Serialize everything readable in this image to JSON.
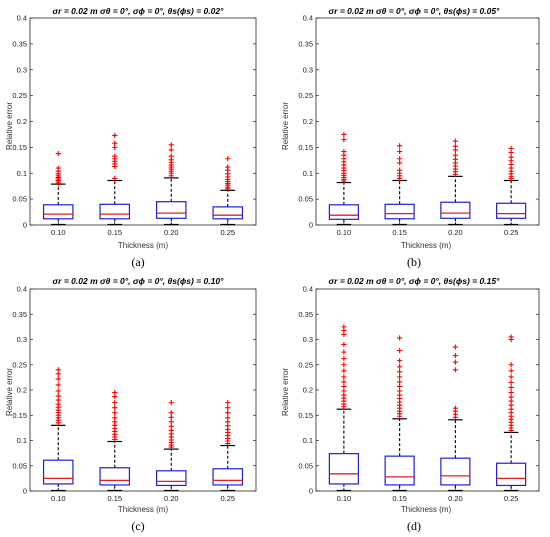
{
  "chart_data": [
    {
      "type": "box",
      "caption": "(a)",
      "title": "σr = 0.02 m σθ = 0°, σϕ = 0°, θs(ϕs) = 0.02°",
      "xlabel": "Thickness (m)",
      "ylabel": "Relative error",
      "categories": [
        "0.10",
        "0.15",
        "0.20",
        "0.25"
      ],
      "ylim": [
        0,
        0.4
      ],
      "yticks": [
        0,
        0.05,
        0.1,
        0.15,
        0.2,
        0.25,
        0.3,
        0.35,
        0.4
      ],
      "ytick_labels": [
        "0",
        "0.05",
        "0.1",
        "0.15",
        "0.2",
        "0.25",
        "0.3",
        "0.35",
        "0.4"
      ],
      "boxes": [
        {
          "q1": 0.012,
          "median": 0.021,
          "q3": 0.039,
          "whisker_low": 0.001,
          "whisker_high": 0.079,
          "outliers": [
            0.08,
            0.083,
            0.086,
            0.089,
            0.092,
            0.095,
            0.099,
            0.104,
            0.11,
            0.138
          ]
        },
        {
          "q1": 0.012,
          "median": 0.021,
          "q3": 0.04,
          "whisker_low": 0.001,
          "whisker_high": 0.086,
          "outliers": [
            0.09,
            0.113,
            0.118,
            0.123,
            0.128,
            0.133,
            0.15,
            0.158,
            0.173
          ]
        },
        {
          "q1": 0.013,
          "median": 0.023,
          "q3": 0.045,
          "whisker_low": 0.001,
          "whisker_high": 0.091,
          "outliers": [
            0.095,
            0.1,
            0.104,
            0.108,
            0.112,
            0.116,
            0.121,
            0.126,
            0.133,
            0.145,
            0.155
          ]
        },
        {
          "q1": 0.012,
          "median": 0.019,
          "q3": 0.035,
          "whisker_low": 0.001,
          "whisker_high": 0.067,
          "outliers": [
            0.07,
            0.073,
            0.077,
            0.08,
            0.084,
            0.088,
            0.093,
            0.099,
            0.106,
            0.112,
            0.128
          ]
        }
      ]
    },
    {
      "type": "box",
      "caption": "(b)",
      "title": "σr = 0.02 m σθ = 0°, σϕ = 0°, θs(ϕs) = 0.05°",
      "xlabel": "Thickness (m)",
      "ylabel": "Relative error",
      "categories": [
        "0.10",
        "0.15",
        "0.20",
        "0.25"
      ],
      "ylim": [
        0,
        0.4
      ],
      "yticks": [
        0,
        0.05,
        0.1,
        0.15,
        0.2,
        0.25,
        0.3,
        0.35,
        0.4
      ],
      "ytick_labels": [
        "0",
        "0.05",
        "0.1",
        "0.15",
        "0.2",
        "0.25",
        "0.3",
        "0.35",
        "0.4"
      ],
      "boxes": [
        {
          "q1": 0.011,
          "median": 0.019,
          "q3": 0.039,
          "whisker_low": 0.001,
          "whisker_high": 0.082,
          "outliers": [
            0.085,
            0.088,
            0.092,
            0.096,
            0.1,
            0.105,
            0.11,
            0.116,
            0.122,
            0.128,
            0.135,
            0.142,
            0.165,
            0.175
          ]
        },
        {
          "q1": 0.012,
          "median": 0.022,
          "q3": 0.04,
          "whisker_low": 0.001,
          "whisker_high": 0.086,
          "outliers": [
            0.09,
            0.095,
            0.1,
            0.106,
            0.12,
            0.128,
            0.142,
            0.153
          ]
        },
        {
          "q1": 0.013,
          "median": 0.023,
          "q3": 0.044,
          "whisker_low": 0.001,
          "whisker_high": 0.094,
          "outliers": [
            0.098,
            0.103,
            0.108,
            0.114,
            0.12,
            0.127,
            0.135,
            0.145,
            0.152,
            0.162
          ]
        },
        {
          "q1": 0.013,
          "median": 0.022,
          "q3": 0.042,
          "whisker_low": 0.001,
          "whisker_high": 0.086,
          "outliers": [
            0.09,
            0.094,
            0.099,
            0.104,
            0.11,
            0.117,
            0.124,
            0.131,
            0.14,
            0.148
          ]
        }
      ]
    },
    {
      "type": "box",
      "caption": "(c)",
      "title": "σr = 0.02 m σθ = 0°, σϕ = 0°, θs(ϕs) = 0.10°",
      "xlabel": "Thickness (m)",
      "ylabel": "Relative error",
      "categories": [
        "0.10",
        "0.15",
        "0.20",
        "0.25"
      ],
      "ylim": [
        0,
        0.4
      ],
      "yticks": [
        0,
        0.05,
        0.1,
        0.15,
        0.2,
        0.25,
        0.3,
        0.35,
        0.4
      ],
      "ytick_labels": [
        "0",
        "0.05",
        "0.1",
        "0.15",
        "0.2",
        "0.25",
        "0.3",
        "0.35",
        "0.4"
      ],
      "boxes": [
        {
          "q1": 0.014,
          "median": 0.025,
          "q3": 0.061,
          "whisker_low": 0.001,
          "whisker_high": 0.13,
          "outliers": [
            0.135,
            0.14,
            0.145,
            0.15,
            0.155,
            0.16,
            0.166,
            0.172,
            0.18,
            0.188,
            0.198,
            0.21,
            0.222,
            0.232,
            0.24
          ]
        },
        {
          "q1": 0.012,
          "median": 0.021,
          "q3": 0.046,
          "whisker_low": 0.001,
          "whisker_high": 0.098,
          "outliers": [
            0.102,
            0.107,
            0.112,
            0.118,
            0.124,
            0.13,
            0.137,
            0.145,
            0.155,
            0.165,
            0.175,
            0.187,
            0.195
          ]
        },
        {
          "q1": 0.011,
          "median": 0.019,
          "q3": 0.04,
          "whisker_low": 0.001,
          "whisker_high": 0.083,
          "outliers": [
            0.087,
            0.091,
            0.096,
            0.101,
            0.107,
            0.113,
            0.12,
            0.128,
            0.137,
            0.146,
            0.155,
            0.175
          ]
        },
        {
          "q1": 0.012,
          "median": 0.021,
          "q3": 0.044,
          "whisker_low": 0.001,
          "whisker_high": 0.09,
          "outliers": [
            0.094,
            0.099,
            0.104,
            0.11,
            0.116,
            0.122,
            0.129,
            0.137,
            0.145,
            0.155,
            0.165,
            0.175
          ]
        }
      ]
    },
    {
      "type": "box",
      "caption": "(d)",
      "title": "σr = 0.02 m σθ = 0°, σϕ = 0°, θs(ϕs) = 0.15°",
      "xlabel": "Thickness (m)",
      "ylabel": "Relative error",
      "categories": [
        "0.10",
        "0.15",
        "0.20",
        "0.25"
      ],
      "ylim": [
        0,
        0.4
      ],
      "yticks": [
        0,
        0.05,
        0.1,
        0.15,
        0.2,
        0.25,
        0.3,
        0.35,
        0.4
      ],
      "ytick_labels": [
        "0",
        "0.05",
        "0.1",
        "0.15",
        "0.2",
        "0.25",
        "0.3",
        "0.35",
        "0.4"
      ],
      "boxes": [
        {
          "q1": 0.014,
          "median": 0.034,
          "q3": 0.074,
          "whisker_low": 0.001,
          "whisker_high": 0.162,
          "outliers": [
            0.167,
            0.172,
            0.178,
            0.184,
            0.19,
            0.198,
            0.207,
            0.216,
            0.226,
            0.238,
            0.25,
            0.262,
            0.275,
            0.29,
            0.31,
            0.318,
            0.325
          ]
        },
        {
          "q1": 0.012,
          "median": 0.028,
          "q3": 0.069,
          "whisker_low": 0.001,
          "whisker_high": 0.143,
          "outliers": [
            0.148,
            0.153,
            0.158,
            0.164,
            0.17,
            0.176,
            0.183,
            0.19,
            0.198,
            0.207,
            0.216,
            0.226,
            0.236,
            0.246,
            0.258,
            0.278,
            0.303
          ]
        },
        {
          "q1": 0.012,
          "median": 0.03,
          "q3": 0.065,
          "whisker_low": 0.001,
          "whisker_high": 0.141,
          "outliers": [
            0.146,
            0.152,
            0.158,
            0.164,
            0.24,
            0.255,
            0.268,
            0.285
          ]
        },
        {
          "q1": 0.011,
          "median": 0.025,
          "q3": 0.055,
          "whisker_low": 0.001,
          "whisker_high": 0.116,
          "outliers": [
            0.12,
            0.125,
            0.13,
            0.136,
            0.142,
            0.148,
            0.155,
            0.162,
            0.17,
            0.178,
            0.186,
            0.195,
            0.205,
            0.215,
            0.226,
            0.238,
            0.25,
            0.3,
            0.305
          ]
        }
      ]
    }
  ],
  "colors": {
    "box": "#1f1fd6",
    "median": "#e02020",
    "whisker": "#000000",
    "outlier": "#ff0000",
    "axes": "#262626"
  }
}
